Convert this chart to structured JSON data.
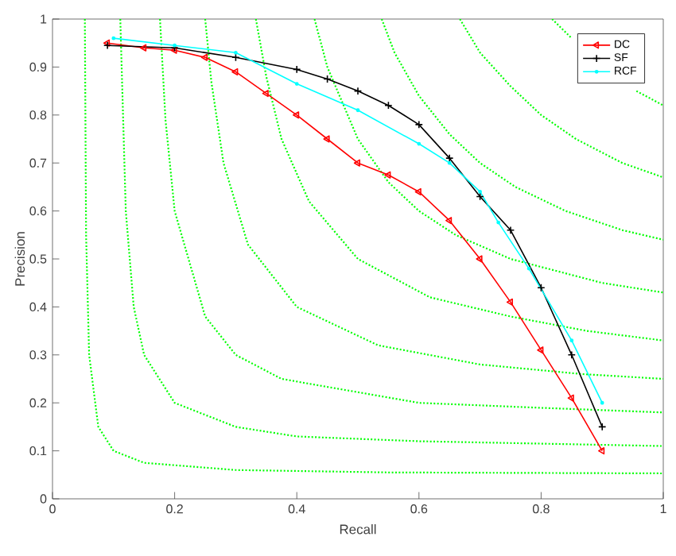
{
  "chart_data": {
    "type": "line",
    "xlabel": "Recall",
    "ylabel": "Precision",
    "xlim": [
      0,
      1
    ],
    "ylim": [
      0,
      1
    ],
    "xticks": [
      0,
      0.2,
      0.4,
      0.6,
      0.8,
      1
    ],
    "yticks": [
      0,
      0.1,
      0.2,
      0.3,
      0.4,
      0.5,
      0.6,
      0.7,
      0.8,
      0.9,
      1
    ],
    "legend": "top right",
    "grid": false,
    "series": [
      {
        "color": "#00ff00",
        "line_style": "dotted",
        "marker": "none",
        "x": [
          0.053,
          0.055,
          0.06,
          0.075,
          0.1,
          0.15,
          0.3,
          0.55,
          1
        ],
        "values": [
          1,
          0.55,
          0.3,
          0.15,
          0.1,
          0.075,
          0.06,
          0.055,
          0.053
        ]
      },
      {
        "color": "#00ff00",
        "line_style": "dotted",
        "marker": "none",
        "x": [
          0.111,
          0.12,
          0.133,
          0.15,
          0.2,
          0.3,
          0.4,
          0.6,
          1
        ],
        "values": [
          1,
          0.6,
          0.4,
          0.3,
          0.2,
          0.15,
          0.13,
          0.12,
          0.11
        ]
      },
      {
        "color": "#00ff00",
        "line_style": "dotted",
        "marker": "none",
        "x": [
          0.176,
          0.185,
          0.2,
          0.25,
          0.3,
          0.375,
          0.6,
          0.793,
          1
        ],
        "values": [
          1,
          0.79,
          0.6,
          0.38,
          0.3,
          0.25,
          0.2,
          0.19,
          0.18
        ]
      },
      {
        "color": "#00ff00",
        "line_style": "dotted",
        "marker": "none",
        "x": [
          0.25,
          0.26,
          0.28,
          0.32,
          0.4,
          0.533,
          0.7,
          0.867,
          1
        ],
        "values": [
          1,
          0.87,
          0.7,
          0.53,
          0.4,
          0.32,
          0.28,
          0.26,
          0.25
        ]
      },
      {
        "color": "#00ff00",
        "line_style": "dotted",
        "marker": "none",
        "x": [
          0.333,
          0.35,
          0.375,
          0.42,
          0.5,
          0.618,
          0.75,
          0.875,
          1
        ],
        "values": [
          1,
          0.88,
          0.75,
          0.62,
          0.5,
          0.42,
          0.38,
          0.35,
          0.33
        ]
      },
      {
        "color": "#00ff00",
        "line_style": "dotted",
        "marker": "none",
        "x": [
          0.429,
          0.45,
          0.5,
          0.55,
          0.6,
          0.66,
          0.75,
          0.9,
          1
        ],
        "values": [
          1,
          0.9,
          0.75,
          0.66,
          0.6,
          0.55,
          0.5,
          0.45,
          0.43
        ]
      },
      {
        "color": "#00ff00",
        "line_style": "dotted",
        "marker": "none",
        "x": [
          0.539,
          0.56,
          0.6,
          0.65,
          0.7,
          0.758,
          0.84,
          0.933,
          1
        ],
        "values": [
          1,
          0.93,
          0.84,
          0.76,
          0.7,
          0.65,
          0.6,
          0.56,
          0.54
        ]
      },
      {
        "color": "#00ff00",
        "line_style": "dotted",
        "marker": "none",
        "x": [
          0.667,
          0.7,
          0.75,
          0.8,
          0.857,
          0.933,
          1
        ],
        "values": [
          1,
          0.93,
          0.86,
          0.8,
          0.75,
          0.7,
          0.67
        ]
      },
      {
        "color": "#00ff00",
        "line_style": "dotted",
        "marker": "none",
        "x": [
          0.818,
          0.85,
          0.9,
          0.956,
          1
        ],
        "values": [
          1,
          0.96,
          null,
          0.85,
          0.82
        ]
      },
      {
        "name": "DC",
        "color": "#ff0000",
        "line_style": "solid",
        "marker": "triangle",
        "x": [
          0.09,
          0.15,
          0.2,
          0.25,
          0.3,
          0.35,
          0.4,
          0.45,
          0.5,
          0.55,
          0.6,
          0.65,
          0.7,
          0.75,
          0.8,
          0.85,
          0.9
        ],
        "values": [
          0.95,
          0.94,
          0.935,
          0.92,
          0.89,
          0.845,
          0.8,
          0.75,
          0.7,
          0.675,
          0.64,
          0.58,
          0.5,
          0.41,
          0.31,
          0.21,
          0.1
        ]
      },
      {
        "name": "SF",
        "color": "#000000",
        "line_style": "solid",
        "marker": "cross",
        "x": [
          0.09,
          0.2,
          0.3,
          0.4,
          0.45,
          0.5,
          0.55,
          0.6,
          0.65,
          0.7,
          0.75,
          0.8,
          0.85,
          0.9
        ],
        "values": [
          0.945,
          0.94,
          0.92,
          0.895,
          0.875,
          0.85,
          0.82,
          0.78,
          0.71,
          0.63,
          0.56,
          0.44,
          0.3,
          0.15
        ]
      },
      {
        "name": "RCF",
        "color": "#00ffff",
        "line_style": "solid",
        "marker": "circle",
        "x": [
          0.1,
          0.2,
          0.3,
          0.4,
          0.5,
          0.6,
          0.65,
          0.7,
          0.73,
          0.78,
          0.85,
          0.9
        ],
        "values": [
          0.96,
          0.945,
          0.93,
          0.865,
          0.81,
          0.74,
          0.7,
          0.64,
          0.576,
          0.48,
          0.33,
          0.2
        ]
      }
    ]
  }
}
